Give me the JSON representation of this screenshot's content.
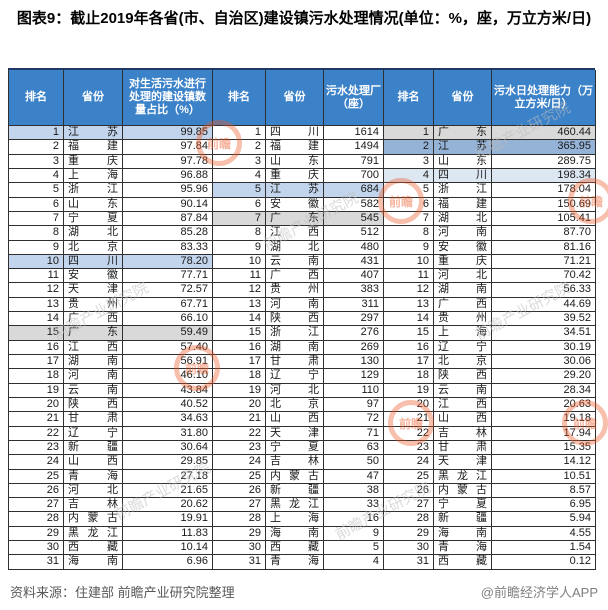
{
  "title": "图表9：截止2019年各省(市、自治区)建设镇污水处理情况(单位：%，座，万立方米/日)",
  "footer": {
    "source": "资料来源：住建部 前瞻产业研究院整理",
    "credit": "@前瞻经济学人APP"
  },
  "watermark": {
    "logo_text": "前瞻",
    "diag_text": "前瞻产业研究院"
  },
  "colors": {
    "header_bg": "#3c82c8",
    "header_text": "#ffffff",
    "border": "#2f2f2f",
    "highlight_lightblue": "#c2d5ec",
    "highlight_paleblue": "#dde7f2",
    "highlight_blue": "#95b3d7",
    "highlight_gray": "#d9d9d9"
  },
  "chart_data": [
    {
      "type": "table",
      "name": "对生活污水进行处理的建设镇数量占比",
      "columns": [
        "排名",
        "省份",
        "对生活污水进行处理的建设镇数量占比（%）"
      ],
      "rows": [
        [
          1,
          "江苏",
          "99.85",
          "lt"
        ],
        [
          2,
          "福建",
          "97.84",
          ""
        ],
        [
          3,
          "重庆",
          "97.78",
          ""
        ],
        [
          4,
          "上海",
          "96.88",
          ""
        ],
        [
          5,
          "浙江",
          "95.96",
          ""
        ],
        [
          6,
          "山东",
          "90.14",
          ""
        ],
        [
          7,
          "宁夏",
          "87.84",
          ""
        ],
        [
          8,
          "湖北",
          "85.28",
          ""
        ],
        [
          9,
          "北京",
          "83.33",
          ""
        ],
        [
          10,
          "四川",
          "78.20",
          "lt"
        ],
        [
          11,
          "安徽",
          "77.71",
          ""
        ],
        [
          12,
          "天津",
          "72.57",
          ""
        ],
        [
          13,
          "贵州",
          "67.71",
          ""
        ],
        [
          14,
          "广西",
          "66.10",
          ""
        ],
        [
          15,
          "广东",
          "59.49",
          "gray"
        ],
        [
          16,
          "江西",
          "57.40",
          ""
        ],
        [
          17,
          "湖南",
          "56.91",
          ""
        ],
        [
          18,
          "河南",
          "46.10",
          ""
        ],
        [
          19,
          "云南",
          "43.84",
          ""
        ],
        [
          20,
          "陕西",
          "40.52",
          ""
        ],
        [
          21,
          "甘肃",
          "34.63",
          ""
        ],
        [
          22,
          "辽宁",
          "31.80",
          ""
        ],
        [
          23,
          "新疆",
          "30.64",
          ""
        ],
        [
          24,
          "山西",
          "29.85",
          ""
        ],
        [
          25,
          "青海",
          "27.18",
          ""
        ],
        [
          26,
          "河北",
          "21.65",
          ""
        ],
        [
          27,
          "吉林",
          "20.62",
          ""
        ],
        [
          28,
          "内蒙古",
          "19.91",
          ""
        ],
        [
          29,
          "黑龙江",
          "11.83",
          ""
        ],
        [
          30,
          "西藏",
          "10.14",
          ""
        ],
        [
          31,
          "海南",
          "6.96",
          ""
        ]
      ]
    },
    {
      "type": "table",
      "name": "污水处理厂数量",
      "columns": [
        "排名",
        "省份",
        "污水处理厂（座）"
      ],
      "rows": [
        [
          1,
          "四川",
          "1614",
          ""
        ],
        [
          2,
          "福建",
          "1494",
          ""
        ],
        [
          3,
          "山东",
          "791",
          ""
        ],
        [
          4,
          "重庆",
          "700",
          ""
        ],
        [
          5,
          "江苏",
          "684",
          "lt"
        ],
        [
          6,
          "安徽",
          "582",
          ""
        ],
        [
          7,
          "广东",
          "545",
          "gray"
        ],
        [
          8,
          "江西",
          "512",
          ""
        ],
        [
          9,
          "湖北",
          "480",
          ""
        ],
        [
          10,
          "云南",
          "431",
          ""
        ],
        [
          11,
          "广西",
          "407",
          ""
        ],
        [
          12,
          "贵州",
          "383",
          ""
        ],
        [
          13,
          "河南",
          "311",
          ""
        ],
        [
          14,
          "陕西",
          "297",
          ""
        ],
        [
          15,
          "浙江",
          "276",
          ""
        ],
        [
          16,
          "湖南",
          "269",
          ""
        ],
        [
          17,
          "甘肃",
          "130",
          ""
        ],
        [
          18,
          "辽宁",
          "129",
          ""
        ],
        [
          19,
          "河北",
          "110",
          ""
        ],
        [
          20,
          "北京",
          "97",
          ""
        ],
        [
          21,
          "山西",
          "72",
          ""
        ],
        [
          22,
          "天津",
          "71",
          ""
        ],
        [
          23,
          "宁夏",
          "63",
          ""
        ],
        [
          24,
          "吉林",
          "50",
          ""
        ],
        [
          25,
          "内蒙古",
          "47",
          ""
        ],
        [
          26,
          "新疆",
          "38",
          ""
        ],
        [
          27,
          "黑龙江",
          "33",
          ""
        ],
        [
          28,
          "上海",
          "16",
          ""
        ],
        [
          29,
          "海南",
          "9",
          ""
        ],
        [
          30,
          "西藏",
          "5",
          ""
        ],
        [
          31,
          "青海",
          "4",
          ""
        ]
      ]
    },
    {
      "type": "table",
      "name": "污水日处理能力",
      "columns": [
        "排名",
        "省份",
        "污水日处理能力（万立方米/日）"
      ],
      "rows": [
        [
          1,
          "广东",
          "460.44",
          "gray"
        ],
        [
          2,
          "江苏",
          "365.95",
          "blue"
        ],
        [
          3,
          "山东",
          "289.75",
          ""
        ],
        [
          4,
          "四川",
          "198.34",
          "pale"
        ],
        [
          5,
          "浙江",
          "178.04",
          ""
        ],
        [
          6,
          "福建",
          "150.69",
          ""
        ],
        [
          7,
          "湖北",
          "105.41",
          ""
        ],
        [
          8,
          "河南",
          "87.70",
          ""
        ],
        [
          9,
          "安徽",
          "81.16",
          ""
        ],
        [
          10,
          "重庆",
          "71.21",
          ""
        ],
        [
          11,
          "河北",
          "70.42",
          ""
        ],
        [
          12,
          "湖南",
          "56.33",
          ""
        ],
        [
          13,
          "广西",
          "44.69",
          ""
        ],
        [
          14,
          "贵州",
          "39.52",
          ""
        ],
        [
          15,
          "上海",
          "34.51",
          ""
        ],
        [
          16,
          "辽宁",
          "30.19",
          ""
        ],
        [
          17,
          "北京",
          "30.06",
          ""
        ],
        [
          18,
          "陕西",
          "29.20",
          ""
        ],
        [
          19,
          "云南",
          "28.34",
          ""
        ],
        [
          20,
          "江西",
          "20.63",
          ""
        ],
        [
          21,
          "山西",
          "19.18",
          ""
        ],
        [
          22,
          "吉林",
          "17.94",
          ""
        ],
        [
          23,
          "甘肃",
          "15.35",
          ""
        ],
        [
          24,
          "天津",
          "14.12",
          ""
        ],
        [
          25,
          "黑龙江",
          "10.51",
          ""
        ],
        [
          26,
          "内蒙古",
          "8.57",
          ""
        ],
        [
          27,
          "宁夏",
          "6.95",
          ""
        ],
        [
          28,
          "新疆",
          "5.94",
          ""
        ],
        [
          29,
          "海南",
          "4.55",
          ""
        ],
        [
          30,
          "青海",
          "1.54",
          ""
        ],
        [
          31,
          "西藏",
          "0.12",
          ""
        ]
      ]
    }
  ]
}
